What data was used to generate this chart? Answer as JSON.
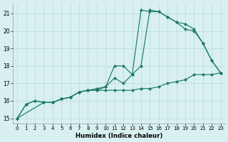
{
  "xlabel": "Humidex (Indice chaleur)",
  "xlim": [
    -0.5,
    23.5
  ],
  "ylim": [
    14.7,
    21.6
  ],
  "xticks": [
    0,
    1,
    2,
    3,
    4,
    5,
    6,
    7,
    8,
    9,
    10,
    11,
    12,
    13,
    14,
    15,
    16,
    17,
    18,
    19,
    20,
    21,
    22,
    23
  ],
  "yticks": [
    15,
    16,
    17,
    18,
    19,
    20,
    21
  ],
  "line_color": "#1a7a6a",
  "bg_color": "#d8f0f0",
  "grid_color": "#b8dada",
  "line1_x": [
    0,
    1,
    2,
    3,
    4,
    5,
    6,
    7,
    8,
    9,
    10,
    11,
    12,
    13,
    14,
    15,
    16,
    17,
    18,
    19,
    20,
    21,
    22,
    23
  ],
  "line1_y": [
    15.0,
    15.8,
    16.0,
    15.9,
    15.9,
    16.1,
    16.2,
    16.5,
    16.6,
    16.7,
    16.8,
    17.3,
    17.0,
    17.5,
    21.2,
    21.1,
    21.1,
    20.8,
    20.5,
    20.4,
    20.1,
    19.3,
    18.3,
    17.6
  ],
  "line2_x": [
    0,
    3,
    4,
    5,
    6,
    7,
    8,
    9,
    10,
    11,
    12,
    13,
    14,
    15,
    16,
    17,
    18,
    19,
    20,
    21,
    22,
    23
  ],
  "line2_y": [
    15.0,
    15.9,
    15.9,
    16.1,
    16.2,
    16.5,
    16.6,
    16.6,
    16.8,
    18.0,
    18.0,
    17.5,
    18.0,
    21.2,
    21.1,
    20.8,
    20.5,
    20.1,
    20.0,
    19.3,
    18.3,
    17.6
  ],
  "line3_x": [
    0,
    1,
    2,
    3,
    4,
    5,
    6,
    7,
    8,
    9,
    10,
    11,
    12,
    13,
    14,
    15,
    16,
    17,
    18,
    19,
    20,
    21,
    22,
    23
  ],
  "line3_y": [
    15.0,
    15.8,
    16.0,
    15.9,
    15.9,
    16.1,
    16.2,
    16.5,
    16.6,
    16.6,
    16.6,
    16.6,
    16.6,
    16.6,
    16.7,
    16.7,
    16.8,
    17.0,
    17.1,
    17.2,
    17.5,
    17.5,
    17.5,
    17.6
  ]
}
